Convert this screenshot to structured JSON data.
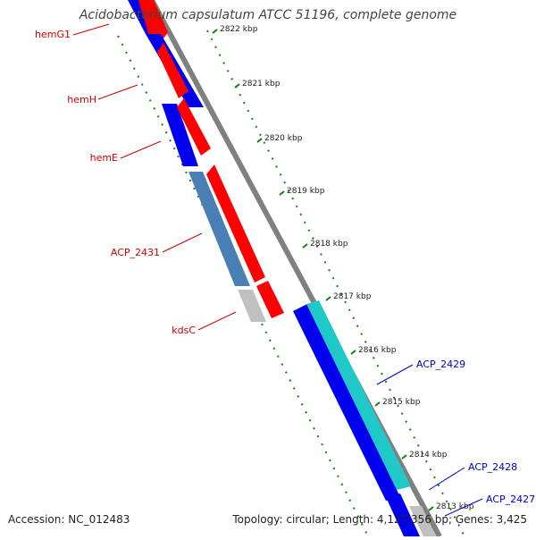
{
  "title": "Acidobacterium capsulatum ATCC 51196, complete genome",
  "footer": {
    "accession": "Accession: NC_012483",
    "summary": "Topology: circular; Length: 4,127,356 bp; Genes: 3,425"
  },
  "tick_labels": [
    "2822 kbp",
    "2821 kbp",
    "2820 kbp",
    "2819 kbp",
    "2818 kbp",
    "2817 kbp",
    "2816 kbp",
    "2815 kbp",
    "2814 kbp",
    "2813 kbp"
  ],
  "genes": [
    {
      "name": "hemG1",
      "strand": "reverse"
    },
    {
      "name": "hemH",
      "strand": "reverse"
    },
    {
      "name": "hemE",
      "strand": "reverse"
    },
    {
      "name": "ACP_2431",
      "strand": "reverse"
    },
    {
      "name": "kdsC",
      "strand": "reverse"
    },
    {
      "name": "ACP_2429",
      "strand": "forward"
    },
    {
      "name": "ACP_2428",
      "strand": "forward"
    },
    {
      "name": "ACP_2427",
      "strand": "forward"
    }
  ],
  "colors": {
    "reverse_label": "#cc0000",
    "forward_label": "#0000cc",
    "backbone": "#808080",
    "cds_red": "#ff0000",
    "cds_blue": "#0000ee",
    "cds_steel": "#4a7fb5",
    "cds_grey": "#c0c0c0",
    "cds_cyan": "#20c8c8",
    "tick_green": "#1a7a1a"
  }
}
